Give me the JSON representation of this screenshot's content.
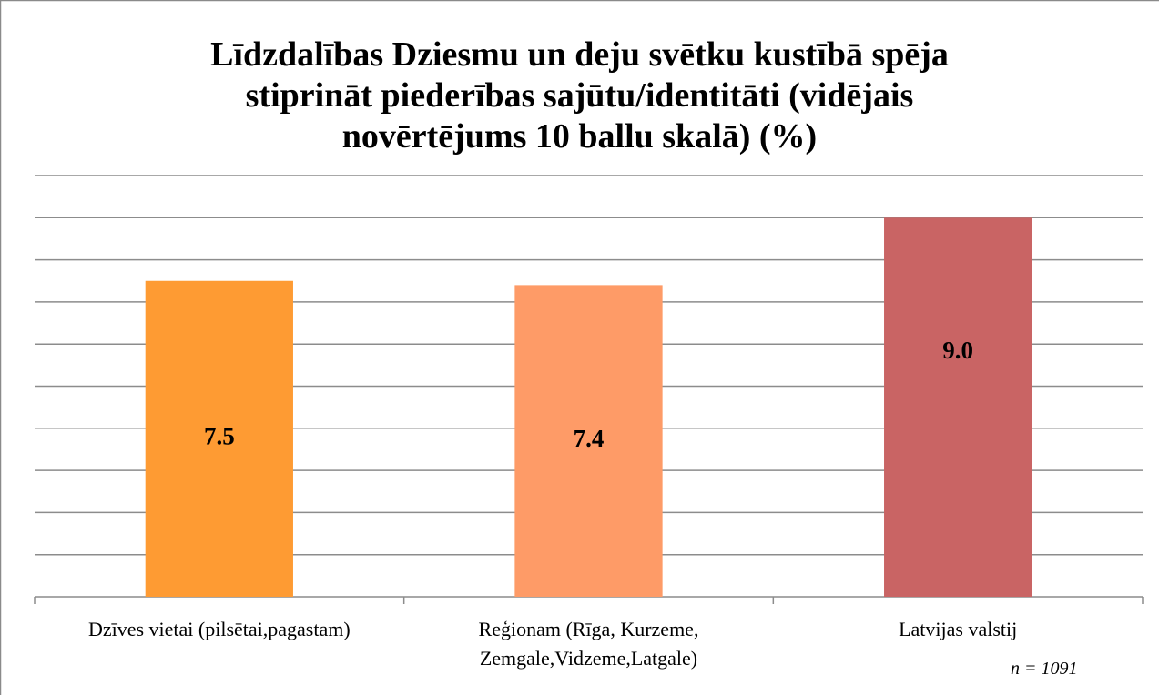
{
  "chart_data": {
    "type": "bar",
    "title": "Līdzdalības Dziesmu un deju svētku kustībā spēja\nstiprināt piederības sajūtu/identitāti (vidējais\nnovērtējums 10 ballu skalā) (%)",
    "categories": [
      "Dzīves vietai (pilsētai,pagastam)",
      "Reģionam (Rīga, Kurzeme,\nZemgale,Vidzeme,Latgale)",
      "Latvijas valstij"
    ],
    "values": [
      7.5,
      7.4,
      9.0
    ],
    "value_labels": [
      "7.5",
      "7.4",
      "9.0"
    ],
    "colors": [
      "#fe9b33",
      "#fe9b67",
      "#c96464"
    ],
    "ylim": [
      0,
      10
    ],
    "yticks": [
      0,
      1,
      2,
      3,
      4,
      5,
      6,
      7,
      8,
      9,
      10
    ],
    "grid": true,
    "annotation": "n = 1091"
  }
}
